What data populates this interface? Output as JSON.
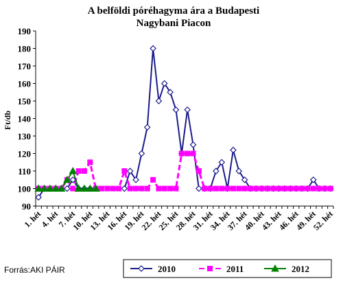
{
  "chart_data": {
    "type": "line",
    "title_lines": [
      "A belföldi póréhagyma ára a Budapesti",
      "Nagybani Piacon"
    ],
    "ylabel": "Ft/db",
    "ylim": [
      90,
      190
    ],
    "yticks": [
      90,
      100,
      110,
      120,
      130,
      140,
      150,
      160,
      170,
      180,
      190
    ],
    "x": [
      1,
      2,
      3,
      4,
      5,
      6,
      7,
      8,
      9,
      10,
      11,
      12,
      13,
      14,
      15,
      16,
      17,
      18,
      19,
      20,
      21,
      22,
      23,
      24,
      25,
      26,
      27,
      28,
      29,
      30,
      31,
      32,
      33,
      34,
      35,
      36,
      37,
      38,
      39,
      40,
      41,
      42,
      43,
      44,
      45,
      46,
      47,
      48,
      49,
      50,
      51,
      52
    ],
    "xtick_labels": [
      "1. hét",
      "4. hét",
      "7. hét",
      "10. hét",
      "13. hét",
      "16. hét",
      "19. hét",
      "22. hét",
      "25. hét",
      "28. hét",
      "31. hét",
      "34. hét",
      "37. hét",
      "40. hét",
      "43. hét",
      "46. hét",
      "49. hét",
      "52. hét"
    ],
    "grid": false,
    "legend_position": "bottom",
    "series": [
      {
        "name": "2010",
        "color": "#1a1a8c",
        "marker": "diamond-open",
        "line_style": "solid",
        "values": [
          95,
          100,
          100,
          100,
          100,
          100,
          105,
          100,
          100,
          100,
          null,
          null,
          null,
          null,
          null,
          100,
          110,
          105,
          120,
          135,
          180,
          150,
          160,
          155,
          145,
          120,
          145,
          125,
          100,
          100,
          100,
          110,
          115,
          100,
          122,
          110,
          105,
          100,
          100,
          100,
          100,
          100,
          100,
          100,
          100,
          100,
          100,
          100,
          105,
          100,
          100,
          100
        ]
      },
      {
        "name": "2011",
        "color": "#ff00ff",
        "marker": "square",
        "line_style": "dashed",
        "values": [
          100,
          100,
          100,
          100,
          100,
          105,
          100,
          110,
          110,
          115,
          100,
          100,
          100,
          100,
          100,
          110,
          100,
          100,
          100,
          100,
          105,
          100,
          100,
          100,
          100,
          120,
          120,
          120,
          110,
          100,
          100,
          100,
          100,
          100,
          100,
          100,
          100,
          100,
          100,
          100,
          100,
          100,
          100,
          100,
          100,
          100,
          100,
          100,
          100,
          100,
          100,
          100
        ]
      },
      {
        "name": "2012",
        "color": "#008000",
        "marker": "triangle",
        "line_style": "solid",
        "values": [
          100,
          100,
          100,
          100,
          100,
          105,
          110,
          100,
          100,
          100,
          100,
          null,
          null,
          null,
          null,
          null,
          null,
          null,
          null,
          null,
          null,
          null,
          null,
          null,
          null,
          null,
          null,
          null,
          null,
          null,
          null,
          null,
          null,
          null,
          null,
          null,
          null,
          null,
          null,
          null,
          null,
          null,
          null,
          null,
          null,
          null,
          null,
          null,
          null,
          null,
          null,
          null
        ]
      }
    ]
  },
  "source": "Forrás:AKI PÁIR"
}
